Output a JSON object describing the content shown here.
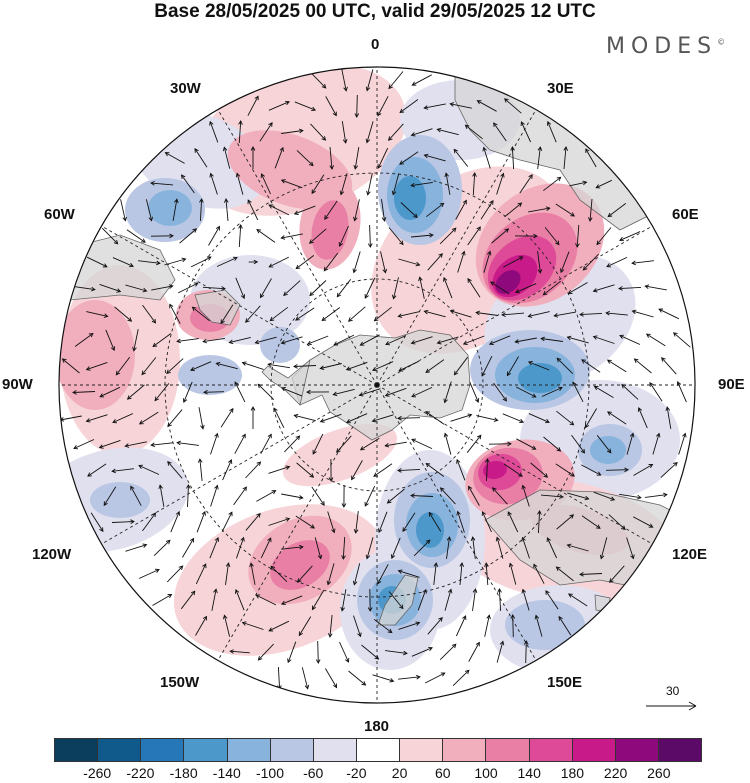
{
  "title": "Base 28/05/2025 00 UTC, valid 29/05/2025 12 UTC",
  "logo": {
    "text": "MODES",
    "mark": "©"
  },
  "longitude_labels": [
    "0",
    "30E",
    "60E",
    "90E",
    "120E",
    "150E",
    "180",
    "150W",
    "120W",
    "90W",
    "60W",
    "30W"
  ],
  "reference_vector_label": "30",
  "colorbar": {
    "ticks": [
      "-260",
      "-220",
      "-180",
      "-140",
      "-100",
      "-60",
      "-20",
      "20",
      "60",
      "100",
      "140",
      "180",
      "220",
      "260"
    ],
    "colors": [
      "#0b3d5c",
      "#0f5a8a",
      "#2677b8",
      "#4d98cb",
      "#87b3dc",
      "#b9c6e4",
      "#e1e0ef",
      "#ffffff",
      "#f7d4d8",
      "#f1aebd",
      "#ea7fa5",
      "#df4a98",
      "#c91a8a",
      "#8e0a7c",
      "#5b0a68"
    ]
  },
  "colors": {
    "land": "#d6d6d6",
    "coast": "#666666",
    "grid": "#222222",
    "vector": "#111111"
  }
}
